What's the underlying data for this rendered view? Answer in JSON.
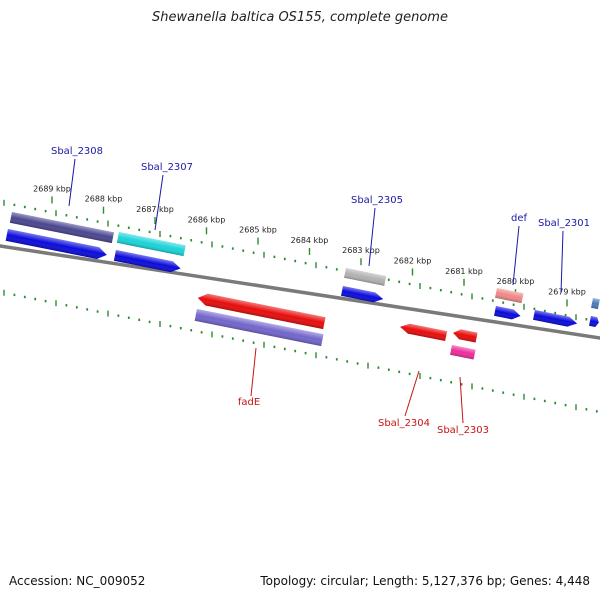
{
  "title": "Shewanella baltica OS155, complete genome",
  "footer": {
    "accession": "Accession: NC_009052",
    "summary": "Topology: circular; Length: 5,127,376 bp; Genes: 4,448"
  },
  "colors": {
    "backbone": "#7a7a7a",
    "ticks": "#2e8b2e",
    "label_forward": "#1a1aa6",
    "label_reverse": "#c81414",
    "cds_blue": "#0b0bdc",
    "cds_navy": "#4a4690",
    "cds_cyan": "#19d4d9",
    "cds_gray": "#b2b2b2",
    "cds_salmon": "#f08888",
    "cds_red": "#e80c0c",
    "cds_purple": "#7266cc",
    "cds_magenta": "#ee2c9a",
    "cds_steel": "#4a7cb4"
  },
  "scale": {
    "unit": "kbp",
    "ticks": [
      {
        "value": 2689,
        "label": "2689 kbp"
      },
      {
        "value": 2688,
        "label": "2688 kbp"
      },
      {
        "value": 2687,
        "label": "2687 kbp"
      },
      {
        "value": 2686,
        "label": "2686 kbp"
      },
      {
        "value": 2685,
        "label": "2685 kbp"
      },
      {
        "value": 2684,
        "label": "2684 kbp"
      },
      {
        "value": 2683,
        "label": "2683 kbp"
      },
      {
        "value": 2682,
        "label": "2682 kbp"
      },
      {
        "value": 2681,
        "label": "2681 kbp"
      },
      {
        "value": 2680,
        "label": "2680 kbp"
      },
      {
        "value": 2679,
        "label": "2679 kbp"
      }
    ]
  },
  "genes": {
    "forward": [
      {
        "label": "Sbal_2308"
      },
      {
        "label": "Sbal_2307"
      },
      {
        "label": "Sbal_2305"
      },
      {
        "label": "def"
      },
      {
        "label": "Sbal_2301"
      }
    ],
    "reverse": [
      {
        "label": "fadE"
      },
      {
        "label": "Sbal_2304"
      },
      {
        "label": "Sbal_2303"
      }
    ]
  }
}
